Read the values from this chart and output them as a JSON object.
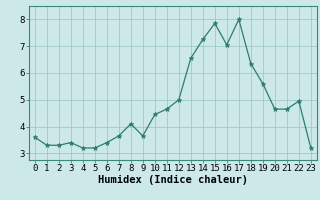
{
  "x": [
    0,
    1,
    2,
    3,
    4,
    5,
    6,
    7,
    8,
    9,
    10,
    11,
    12,
    13,
    14,
    15,
    16,
    17,
    18,
    19,
    20,
    21,
    22,
    23
  ],
  "y": [
    3.6,
    3.3,
    3.3,
    3.4,
    3.2,
    3.2,
    3.4,
    3.65,
    4.1,
    3.65,
    4.45,
    4.65,
    5.0,
    6.55,
    7.25,
    7.85,
    7.05,
    8.0,
    6.35,
    5.6,
    4.65,
    4.65,
    4.95,
    3.2
  ],
  "xlabel": "Humidex (Indice chaleur)",
  "ylim": [
    2.75,
    8.5
  ],
  "xlim": [
    -0.5,
    23.5
  ],
  "bg_color": "#cce8e8",
  "line_color": "#2e7d6e",
  "grid_color": "#a0c8c8",
  "tick_fontsize": 6.5,
  "xlabel_fontsize": 7.5
}
